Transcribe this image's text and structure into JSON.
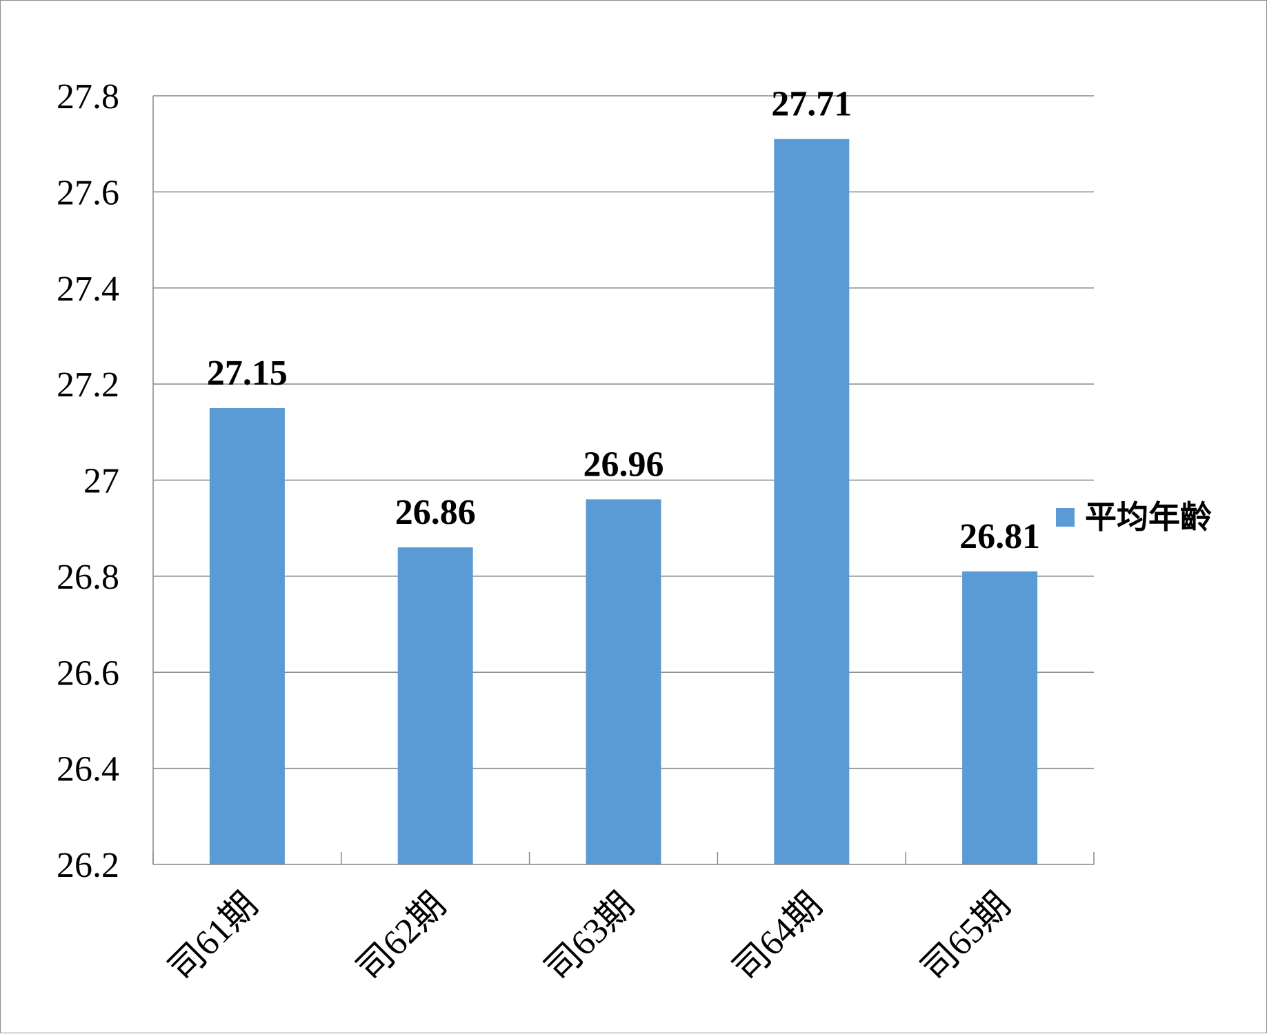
{
  "chart_data": {
    "type": "bar",
    "categories": [
      "司61期",
      "司62期",
      "司63期",
      "司64期",
      "司65期"
    ],
    "series": [
      {
        "name": "平均年齡",
        "values": [
          27.15,
          26.86,
          26.96,
          27.71,
          26.81
        ],
        "labels": [
          "27.15",
          "26.86",
          "26.96",
          "27.71",
          "26.81"
        ]
      }
    ],
    "ylim": [
      26.2,
      27.8
    ],
    "yticks": [
      26.2,
      26.4,
      26.6,
      26.8,
      27,
      27.2,
      27.4,
      27.6,
      27.8
    ],
    "ytick_labels": [
      "26.2",
      "26.4",
      "26.6",
      "26.8",
      "27",
      "27.2",
      "27.4",
      "27.6",
      "27.8"
    ],
    "title": "",
    "xlabel": "",
    "ylabel": "",
    "grid": true,
    "legend_position": "right",
    "colors": {
      "bar": "#5B9BD5",
      "grid": "#868686",
      "axis": "#868686",
      "frame": "#8c8c8c"
    }
  }
}
